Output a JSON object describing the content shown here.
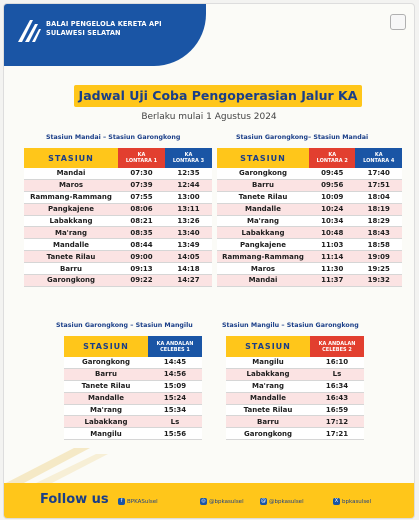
{
  "organization": "BALAI PENGELOLA KERETA API\nSULAWESI SELATAN",
  "org_line1": "BALAI PENGELOLA KERETA API",
  "org_line2": "SULAWESI SELATAN",
  "title": "Jadwal Uji Coba Pengoperasian Jalur KA",
  "subtitle": "Berlaku mulai 1 Agustus 2024",
  "colors": {
    "brand_blue": "#1a55a5",
    "accent_yellow": "#ffc61a",
    "red": "#e23f2f",
    "row_pink": "#fbe3e3"
  },
  "tables": [
    {
      "caption": "Stasiun Mandai – Stasiun Garongkong",
      "col_station": "STASIUN",
      "col_a": "KA\nLONTARA 1",
      "col_b": "KA\nLONTARA 3",
      "rows": [
        [
          "Mandai",
          "07:30",
          "12:35"
        ],
        [
          "Maros",
          "07:39",
          "12:44"
        ],
        [
          "Rammang-Rammang",
          "07:55",
          "13:00"
        ],
        [
          "Pangkajene",
          "08:06",
          "13:11"
        ],
        [
          "Labakkang",
          "08:21",
          "13:26"
        ],
        [
          "Ma'rang",
          "08:35",
          "13:40"
        ],
        [
          "Mandalle",
          "08:44",
          "13:49"
        ],
        [
          "Tanete Rilau",
          "09:00",
          "14:05"
        ],
        [
          "Barru",
          "09:13",
          "14:18"
        ],
        [
          "Garongkong",
          "09:22",
          "14:27"
        ]
      ]
    },
    {
      "caption": "Stasiun Garongkong– Stasiun Mandai",
      "col_station": "STASIUN",
      "col_a": "KA\nLONTARA 2",
      "col_b": "KA\nLONTARA 4",
      "rows": [
        [
          "Garongkong",
          "09:45",
          "17:40"
        ],
        [
          "Barru",
          "09:56",
          "17:51"
        ],
        [
          "Tanete Rilau",
          "10:09",
          "18:04"
        ],
        [
          "Mandalle",
          "10:24",
          "18:19"
        ],
        [
          "Ma'rang",
          "10:34",
          "18:29"
        ],
        [
          "Labakkang",
          "10:48",
          "18:43"
        ],
        [
          "Pangkajene",
          "11:03",
          "18:58"
        ],
        [
          "Rammang-Rammang",
          "11:14",
          "19:09"
        ],
        [
          "Maros",
          "11:30",
          "19:25"
        ],
        [
          "Mandai",
          "11:37",
          "19:32"
        ]
      ]
    },
    {
      "caption": "Stasiun Garongkong – Stasiun Mangilu",
      "col_station": "STASIUN",
      "col_a": "KA ANDALAN\nCELEBES 1",
      "rows": [
        [
          "Garongkong",
          "14:45"
        ],
        [
          "Barru",
          "14:56"
        ],
        [
          "Tanete Rilau",
          "15:09"
        ],
        [
          "Mandalle",
          "15:24"
        ],
        [
          "Ma'rang",
          "15:34"
        ],
        [
          "Labakkang",
          "Ls"
        ],
        [
          "Mangilu",
          "15:56"
        ]
      ]
    },
    {
      "caption": "Stasiun Mangilu – Stasiun Garongkong",
      "col_station": "STASIUN",
      "col_a": "KA ANDALAN\nCELEBES 2",
      "rows": [
        [
          "Mangilu",
          "16:10"
        ],
        [
          "Labakkang",
          "Ls"
        ],
        [
          "Ma'rang",
          "16:34"
        ],
        [
          "Mandalle",
          "16:43"
        ],
        [
          "Tanete Rilau",
          "16:59"
        ],
        [
          "Barru",
          "17:12"
        ],
        [
          "Garongkong",
          "17:21"
        ]
      ]
    }
  ],
  "footer": {
    "follow_label": "Follow us",
    "socials": [
      {
        "icon": "facebook-icon",
        "glyph": "f",
        "label": "BPKASulsel"
      },
      {
        "icon": "instagram-icon",
        "glyph": "◎",
        "label": "@bpkasulsel"
      },
      {
        "icon": "threads-icon",
        "glyph": "@",
        "label": "@bpkasulsel"
      },
      {
        "icon": "x-twitter-icon",
        "glyph": "X",
        "label": "bpkasulsel"
      }
    ]
  }
}
